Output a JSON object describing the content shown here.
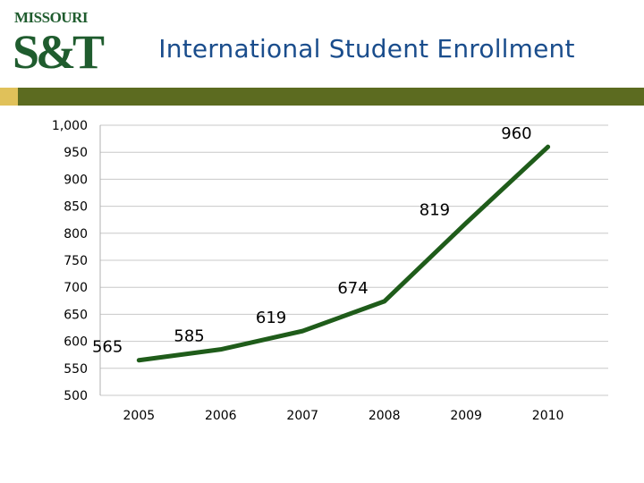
{
  "header": {
    "logo_line1": "MISSOURI",
    "logo_mark": "S&T",
    "title": "International Student Enrollment"
  },
  "colors": {
    "title": "#1a4d8c",
    "line": "#1f5c1a",
    "accent_gold": "#e0c15a",
    "accent_olive": "#5c6b20"
  },
  "chart_data": {
    "type": "line",
    "title": "International Student Enrollment",
    "xlabel": "",
    "ylabel": "",
    "categories": [
      "2005",
      "2006",
      "2007",
      "2008",
      "2009",
      "2010"
    ],
    "series": [
      {
        "values": [
          565,
          585,
          619,
          674,
          819,
          960
        ],
        "data_labels": [
          "565",
          "585",
          "619",
          "674",
          "819",
          "960"
        ]
      }
    ],
    "y_ticks": [
      "1,000",
      "950",
      "900",
      "850",
      "800",
      "750",
      "700",
      "650",
      "600",
      "550",
      "500"
    ],
    "ylim": [
      500,
      1000
    ],
    "grid": true,
    "legend": "none"
  }
}
